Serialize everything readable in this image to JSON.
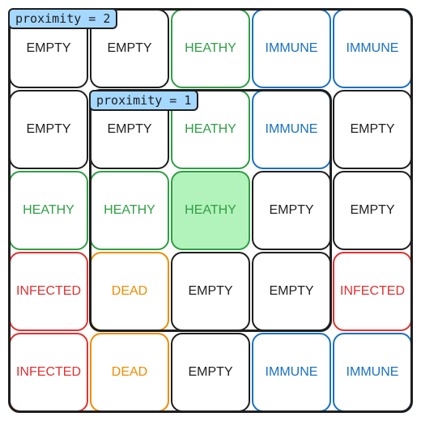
{
  "labels": {
    "proximity_outer": "proximity = 2",
    "proximity_inner": "proximity = 1"
  },
  "state_colors": {
    "EMPTY": "#1e1e1e",
    "HEATHY": "#2f9e44",
    "IMMUNE": "#1971c2",
    "INFECTED": "#e03131",
    "DEAD": "#f08c00"
  },
  "highlight_fill": "#b2f2bb",
  "grid": [
    [
      "EMPTY",
      "EMPTY",
      "HEATHY",
      "IMMUNE",
      "IMMUNE"
    ],
    [
      "EMPTY",
      "EMPTY",
      "HEATHY",
      "IMMUNE",
      "EMPTY"
    ],
    [
      "HEATHY",
      "HEATHY",
      "HEATHY",
      "EMPTY",
      "EMPTY"
    ],
    [
      "INFECTED",
      "DEAD",
      "EMPTY",
      "EMPTY",
      "INFECTED"
    ],
    [
      "INFECTED",
      "DEAD",
      "EMPTY",
      "IMMUNE",
      "IMMUNE"
    ]
  ],
  "focus_cell": {
    "row": 2,
    "col": 2
  }
}
